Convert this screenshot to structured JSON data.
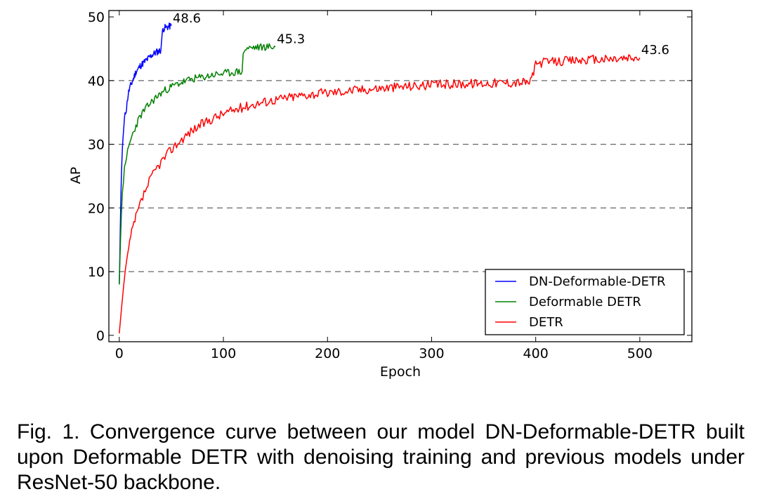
{
  "chart_data": {
    "type": "line",
    "xlabel": "Epoch",
    "ylabel": "AP",
    "xlim": [
      -10,
      550
    ],
    "ylim": [
      -1,
      51
    ],
    "xticks": [
      0,
      100,
      200,
      300,
      400,
      500
    ],
    "yticks": [
      0,
      10,
      20,
      30,
      40,
      50
    ],
    "grid": "horizontal dashed",
    "legend_position": "lower-right",
    "series": [
      {
        "name": "DN-Deformable-DETR",
        "color": "#0000ff",
        "end_label": "48.6",
        "x": [
          0,
          1,
          2,
          3,
          4,
          5,
          6,
          7,
          8,
          9,
          10,
          12,
          14,
          16,
          18,
          20,
          22,
          24,
          26,
          28,
          30,
          32,
          34,
          36,
          38,
          40,
          41,
          42,
          44,
          46,
          48,
          50
        ],
        "y": [
          8.0,
          17.0,
          25.0,
          29.5,
          32.0,
          34.0,
          35.0,
          35.8,
          37.2,
          38.2,
          38.8,
          39.6,
          40.5,
          41.4,
          41.8,
          42.3,
          42.6,
          42.9,
          43.2,
          43.5,
          43.8,
          44.1,
          44.3,
          44.5,
          44.6,
          44.8,
          47.0,
          48.1,
          48.3,
          48.4,
          48.5,
          48.6
        ]
      },
      {
        "name": "Deformable DETR",
        "color": "#008000",
        "end_label": "45.3",
        "x": [
          0,
          1,
          2,
          3,
          4,
          5,
          6,
          8,
          10,
          12,
          15,
          18,
          21,
          24,
          27,
          30,
          35,
          40,
          45,
          50,
          55,
          60,
          65,
          70,
          75,
          80,
          85,
          90,
          95,
          100,
          105,
          110,
          115,
          118,
          119,
          120,
          122,
          125,
          130,
          135,
          140,
          145,
          150
        ],
        "y": [
          8.0,
          14.0,
          19.0,
          22.5,
          24.5,
          26.0,
          27.0,
          28.8,
          30.1,
          31.2,
          32.5,
          33.7,
          34.6,
          35.3,
          35.9,
          36.5,
          37.3,
          38.0,
          38.6,
          39.0,
          39.4,
          39.7,
          40.0,
          40.2,
          40.4,
          40.5,
          40.7,
          40.9,
          41.0,
          41.1,
          41.2,
          41.3,
          41.4,
          41.4,
          43.8,
          44.8,
          45.0,
          45.1,
          45.2,
          45.2,
          45.3,
          45.3,
          45.3
        ]
      },
      {
        "name": "DETR",
        "color": "#ff0000",
        "end_label": "43.6",
        "x": [
          0,
          2,
          4,
          6,
          8,
          10,
          13,
          16,
          20,
          25,
          30,
          35,
          40,
          50,
          60,
          70,
          80,
          90,
          100,
          120,
          140,
          160,
          180,
          200,
          225,
          250,
          275,
          300,
          325,
          350,
          375,
          395,
          398,
          400,
          402,
          410,
          420,
          440,
          460,
          480,
          500
        ],
        "y": [
          0.3,
          4.0,
          7.5,
          10.5,
          12.8,
          14.6,
          16.8,
          18.5,
          20.5,
          22.7,
          24.5,
          26.0,
          27.2,
          29.2,
          30.8,
          32.2,
          33.2,
          34.1,
          34.8,
          35.9,
          36.7,
          37.3,
          37.8,
          38.1,
          38.5,
          38.8,
          39.1,
          39.3,
          39.5,
          39.6,
          39.7,
          39.8,
          41.5,
          42.4,
          42.7,
          42.9,
          43.0,
          43.2,
          43.3,
          43.4,
          43.6
        ]
      }
    ]
  },
  "caption": "Fig. 1. Convergence curve between our model DN-Deformable-DETR built upon Deformable DETR with denoising training and previous models under ResNet-50 backbone."
}
